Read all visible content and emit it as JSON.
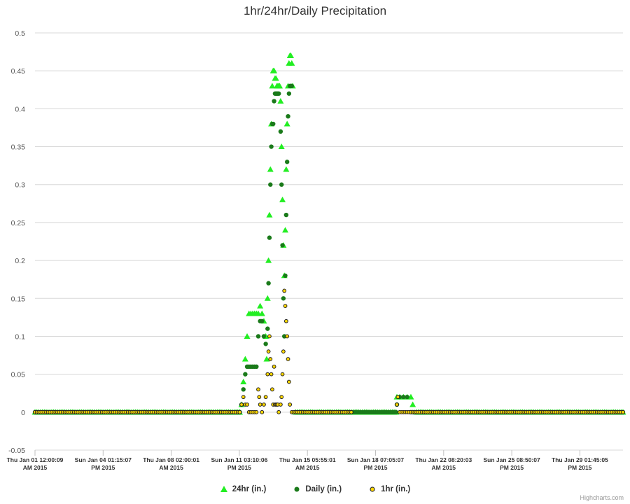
{
  "title": "1hr/24hr/Daily Precipitation",
  "credits": "Highcharts.com",
  "chart_data": {
    "type": "scatter",
    "title": "1hr/24hr/Daily Precipitation",
    "xlabel": "",
    "ylabel": "",
    "ylim": [
      -0.05,
      0.5
    ],
    "y_ticks": [
      "0.5",
      "0.45",
      "0.4",
      "0.35",
      "0.3",
      "0.25",
      "0.2",
      "0.15",
      "0.1",
      "0.05",
      "0",
      "-0.05"
    ],
    "grid": true,
    "legend_position": "bottom-center",
    "x_ticks": [
      {
        "line1": "Thu Jan 01 12:00:09",
        "line2": "AM 2015"
      },
      {
        "line1": "Sun Jan 04 01:15:07",
        "line2": "PM 2015"
      },
      {
        "line1": "Thu Jan 08 02:00:01",
        "line2": "AM 2015"
      },
      {
        "line1": "Sun Jan 11 03:10:06",
        "line2": "PM 2015"
      },
      {
        "line1": "Thu Jan 15 05:55:01",
        "line2": "AM 2015"
      },
      {
        "line1": "Sun Jan 18 07:05:07",
        "line2": "PM 2015"
      },
      {
        "line1": "Thu Jan 22 08:20:03",
        "line2": "AM 2015"
      },
      {
        "line1": "Sun Jan 25 08:50:07",
        "line2": "PM 2015"
      },
      {
        "line1": "Thu Jan 29 01:45:05",
        "line2": "PM 2015"
      }
    ],
    "x_range_days": [
      0,
      31.6
    ],
    "series": [
      {
        "name": "24hr (in.)",
        "marker": "triangle",
        "color": "#22ee22",
        "points": [
          [
            0,
            0
          ],
          [
            5,
            0
          ],
          [
            10,
            0
          ],
          [
            11,
            0
          ],
          [
            11.1,
            0.01
          ],
          [
            11.2,
            0.04
          ],
          [
            11.3,
            0.07
          ],
          [
            11.4,
            0.1
          ],
          [
            11.5,
            0.13
          ],
          [
            11.6,
            0.13
          ],
          [
            11.7,
            0.13
          ],
          [
            11.8,
            0.13
          ],
          [
            11.9,
            0.13
          ],
          [
            12.0,
            0.13
          ],
          [
            12.1,
            0.14
          ],
          [
            12.2,
            0.13
          ],
          [
            12.3,
            0.12
          ],
          [
            12.4,
            0.1
          ],
          [
            12.45,
            0.07
          ],
          [
            12.5,
            0.15
          ],
          [
            12.55,
            0.2
          ],
          [
            12.6,
            0.26
          ],
          [
            12.65,
            0.32
          ],
          [
            12.7,
            0.38
          ],
          [
            12.75,
            0.43
          ],
          [
            12.8,
            0.45
          ],
          [
            12.85,
            0.45
          ],
          [
            12.9,
            0.44
          ],
          [
            12.95,
            0.44
          ],
          [
            13.0,
            0.43
          ],
          [
            13.05,
            0.43
          ],
          [
            13.1,
            0.43
          ],
          [
            13.15,
            0.43
          ],
          [
            13.2,
            0.41
          ],
          [
            13.25,
            0.35
          ],
          [
            13.3,
            0.28
          ],
          [
            13.35,
            0.22
          ],
          [
            13.4,
            0.18
          ],
          [
            13.45,
            0.24
          ],
          [
            13.5,
            0.32
          ],
          [
            13.55,
            0.38
          ],
          [
            13.6,
            0.43
          ],
          [
            13.65,
            0.46
          ],
          [
            13.7,
            0.47
          ],
          [
            13.75,
            0.47
          ],
          [
            13.8,
            0.46
          ],
          [
            13.85,
            0.43
          ],
          [
            14,
            0
          ],
          [
            17,
            0
          ],
          [
            19.4,
            0
          ],
          [
            19.45,
            0.02
          ],
          [
            19.6,
            0.02
          ],
          [
            19.8,
            0.02
          ],
          [
            20.0,
            0.02
          ],
          [
            20.2,
            0.02
          ],
          [
            20.3,
            0.01
          ],
          [
            20.5,
            0
          ],
          [
            25,
            0
          ],
          [
            31.6,
            0
          ]
        ]
      },
      {
        "name": "Daily (in.)",
        "marker": "circle",
        "color": "#1a7a1a",
        "points": [
          [
            0,
            0
          ],
          [
            5,
            0
          ],
          [
            10,
            0
          ],
          [
            11,
            0
          ],
          [
            11.1,
            0.01
          ],
          [
            11.2,
            0.03
          ],
          [
            11.3,
            0.05
          ],
          [
            11.4,
            0.06
          ],
          [
            11.5,
            0.06
          ],
          [
            11.6,
            0.06
          ],
          [
            11.7,
            0.06
          ],
          [
            11.8,
            0.06
          ],
          [
            11.9,
            0.06
          ],
          [
            12.0,
            0.1
          ],
          [
            12.1,
            0.12
          ],
          [
            12.2,
            0.12
          ],
          [
            12.3,
            0.1
          ],
          [
            12.4,
            0.09
          ],
          [
            12.5,
            0.11
          ],
          [
            12.55,
            0.17
          ],
          [
            12.6,
            0.23
          ],
          [
            12.65,
            0.3
          ],
          [
            12.7,
            0.35
          ],
          [
            12.75,
            0.38
          ],
          [
            12.8,
            0.38
          ],
          [
            12.85,
            0.41
          ],
          [
            12.9,
            0.42
          ],
          [
            12.95,
            0.42
          ],
          [
            13.0,
            0.42
          ],
          [
            13.05,
            0.42
          ],
          [
            13.1,
            0.42
          ],
          [
            13.2,
            0.37
          ],
          [
            13.25,
            0.3
          ],
          [
            13.3,
            0.22
          ],
          [
            13.35,
            0.15
          ],
          [
            13.4,
            0.1
          ],
          [
            13.45,
            0.18
          ],
          [
            13.5,
            0.26
          ],
          [
            13.55,
            0.33
          ],
          [
            13.6,
            0.39
          ],
          [
            13.65,
            0.42
          ],
          [
            13.7,
            0.43
          ],
          [
            13.75,
            0.43
          ],
          [
            13.8,
            0.43
          ],
          [
            14,
            0
          ],
          [
            17,
            0
          ],
          [
            19.4,
            0
          ],
          [
            19.45,
            0.01
          ],
          [
            19.6,
            0.02
          ],
          [
            19.8,
            0.02
          ],
          [
            20.0,
            0.02
          ],
          [
            20.2,
            0
          ],
          [
            25,
            0
          ],
          [
            31.6,
            0
          ]
        ]
      },
      {
        "name": "1hr (in.)",
        "marker": "circle-outline",
        "color": "#ffd700",
        "points": [
          [
            0,
            0
          ],
          [
            5,
            0
          ],
          [
            10,
            0
          ],
          [
            11,
            0
          ],
          [
            11.1,
            0.01
          ],
          [
            11.2,
            0.02
          ],
          [
            11.3,
            0.01
          ],
          [
            11.4,
            0.01
          ],
          [
            11.5,
            0
          ],
          [
            11.6,
            0
          ],
          [
            11.7,
            0
          ],
          [
            11.8,
            0
          ],
          [
            11.9,
            0
          ],
          [
            12.0,
            0.03
          ],
          [
            12.05,
            0.02
          ],
          [
            12.1,
            0.01
          ],
          [
            12.2,
            0
          ],
          [
            12.3,
            0.01
          ],
          [
            12.4,
            0.02
          ],
          [
            12.5,
            0.05
          ],
          [
            12.55,
            0.08
          ],
          [
            12.6,
            0.1
          ],
          [
            12.65,
            0.07
          ],
          [
            12.7,
            0.05
          ],
          [
            12.75,
            0.03
          ],
          [
            12.8,
            0.01
          ],
          [
            12.85,
            0.06
          ],
          [
            12.9,
            0.01
          ],
          [
            12.95,
            0.01
          ],
          [
            13.0,
            0.01
          ],
          [
            13.05,
            0.01
          ],
          [
            13.1,
            0
          ],
          [
            13.2,
            0.01
          ],
          [
            13.25,
            0.02
          ],
          [
            13.3,
            0.05
          ],
          [
            13.35,
            0.08
          ],
          [
            13.4,
            0.16
          ],
          [
            13.45,
            0.14
          ],
          [
            13.5,
            0.12
          ],
          [
            13.55,
            0.1
          ],
          [
            13.6,
            0.07
          ],
          [
            13.65,
            0.04
          ],
          [
            13.7,
            0.01
          ],
          [
            13.8,
            0
          ],
          [
            14,
            0
          ],
          [
            17,
            0
          ],
          [
            19.45,
            0.01
          ],
          [
            19.5,
            0.02
          ],
          [
            19.6,
            0
          ],
          [
            20.0,
            0
          ],
          [
            25,
            0
          ],
          [
            31.6,
            0
          ]
        ]
      }
    ]
  }
}
